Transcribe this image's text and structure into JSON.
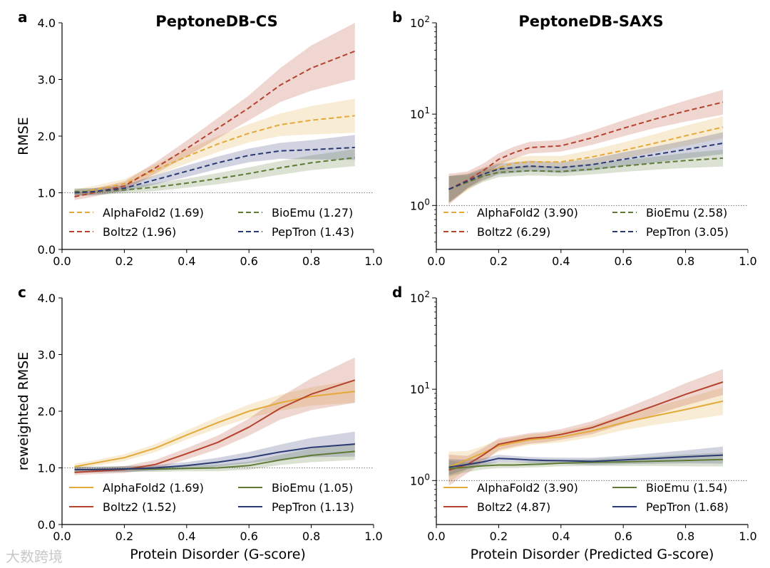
{
  "colors": {
    "AlphaFold2": "#e3aa3a",
    "Boltz2": "#b5442f",
    "BioEmu": "#5e7a35",
    "PepTron": "#2c3a73"
  },
  "watermark": "大数跨境",
  "chart_data": [
    {
      "panel": "a",
      "title": "PeptoneDB-CS",
      "type": "line",
      "line_style": "dashed",
      "xlabel": "",
      "ylabel": "RMSE",
      "xlim": [
        0,
        1
      ],
      "ylim": [
        0,
        4
      ],
      "yscale": "linear",
      "xticks": [
        "0.0",
        "0.2",
        "0.4",
        "0.6",
        "0.8",
        "1.0"
      ],
      "yticks": [
        "0.0",
        "1.0",
        "2.0",
        "3.0",
        "4.0"
      ],
      "reference_line": 1.0,
      "legend_position": "lower center",
      "x": [
        0.04,
        0.1,
        0.2,
        0.3,
        0.4,
        0.5,
        0.6,
        0.7,
        0.8,
        0.94
      ],
      "series": [
        {
          "name": "AlphaFold2",
          "legend": "AlphaFold2 (1.69)",
          "values": [
            1.0,
            1.05,
            1.16,
            1.4,
            1.64,
            1.86,
            2.05,
            2.2,
            2.28,
            2.36
          ],
          "band": [
            0.06,
            0.07,
            0.08,
            0.1,
            0.12,
            0.14,
            0.16,
            0.2,
            0.25,
            0.3
          ]
        },
        {
          "name": "Boltz2",
          "legend": "Boltz2 (1.96)",
          "values": [
            0.93,
            1.0,
            1.12,
            1.44,
            1.78,
            2.14,
            2.5,
            2.9,
            3.2,
            3.5
          ],
          "band": [
            0.06,
            0.07,
            0.08,
            0.1,
            0.14,
            0.18,
            0.22,
            0.3,
            0.4,
            0.5
          ]
        },
        {
          "name": "BioEmu",
          "legend": "BioEmu (1.27)",
          "values": [
            1.02,
            1.02,
            1.05,
            1.1,
            1.17,
            1.25,
            1.34,
            1.44,
            1.53,
            1.62
          ],
          "band": [
            0.06,
            0.06,
            0.06,
            0.07,
            0.08,
            0.1,
            0.11,
            0.12,
            0.13,
            0.15
          ]
        },
        {
          "name": "PepTron",
          "legend": "PepTron (1.43)",
          "values": [
            1.0,
            1.02,
            1.08,
            1.23,
            1.38,
            1.53,
            1.66,
            1.74,
            1.76,
            1.8
          ],
          "band": [
            0.06,
            0.06,
            0.06,
            0.08,
            0.1,
            0.11,
            0.12,
            0.14,
            0.17,
            0.22
          ]
        }
      ]
    },
    {
      "panel": "b",
      "title": "PeptoneDB-SAXS",
      "type": "line",
      "line_style": "dashed",
      "xlabel": "",
      "ylabel": "",
      "xlim": [
        0,
        1
      ],
      "ylim": [
        0.33,
        100
      ],
      "yscale": "log",
      "xticks": [
        "0.0",
        "0.2",
        "0.4",
        "0.6",
        "0.8",
        "1.0"
      ],
      "yticks": [
        "10^0",
        "10^1",
        "10^2"
      ],
      "reference_line": 1.0,
      "legend_position": "lower center",
      "x": [
        0.04,
        0.1,
        0.15,
        0.2,
        0.25,
        0.3,
        0.35,
        0.4,
        0.5,
        0.6,
        0.7,
        0.8,
        0.92
      ],
      "series": [
        {
          "name": "AlphaFold2",
          "legend": "AlphaFold2 (3.90)",
          "values": [
            1.5,
            1.8,
            2.2,
            2.6,
            2.9,
            3.0,
            3.0,
            3.0,
            3.4,
            4.0,
            4.8,
            5.8,
            7.2
          ],
          "band": [
            0.25,
            0.15,
            0.12,
            0.1,
            0.1,
            0.1,
            0.1,
            0.1,
            0.12,
            0.14,
            0.16,
            0.18,
            0.2
          ]
        },
        {
          "name": "Boltz2",
          "legend": "Boltz2 (6.29)",
          "values": [
            1.5,
            1.9,
            2.4,
            3.2,
            3.8,
            4.3,
            4.4,
            4.5,
            5.5,
            7.0,
            8.8,
            10.8,
            13.5
          ],
          "band": [
            0.3,
            0.15,
            0.12,
            0.1,
            0.1,
            0.1,
            0.1,
            0.1,
            0.12,
            0.14,
            0.16,
            0.19,
            0.23
          ]
        },
        {
          "name": "BioEmu",
          "legend": "BioEmu (2.58)",
          "values": [
            1.5,
            1.8,
            2.1,
            2.3,
            2.35,
            2.4,
            2.38,
            2.35,
            2.5,
            2.7,
            2.9,
            3.1,
            3.3
          ],
          "band": [
            0.25,
            0.12,
            0.1,
            0.08,
            0.08,
            0.08,
            0.08,
            0.08,
            0.09,
            0.1,
            0.11,
            0.13,
            0.15
          ]
        },
        {
          "name": "PepTron",
          "legend": "PepTron (3.05)",
          "values": [
            1.5,
            1.85,
            2.2,
            2.5,
            2.6,
            2.7,
            2.65,
            2.6,
            2.8,
            3.2,
            3.6,
            4.1,
            4.8
          ],
          "band": [
            0.25,
            0.12,
            0.1,
            0.09,
            0.09,
            0.09,
            0.09,
            0.09,
            0.1,
            0.12,
            0.14,
            0.16,
            0.2
          ]
        }
      ]
    },
    {
      "panel": "c",
      "title": "",
      "type": "line",
      "line_style": "solid",
      "xlabel": "Protein Disorder (G-score)",
      "ylabel": "reweighted RMSE",
      "xlim": [
        0,
        1
      ],
      "ylim": [
        0,
        4
      ],
      "yscale": "linear",
      "xticks": [
        "0.0",
        "0.2",
        "0.4",
        "0.6",
        "0.8",
        "1.0"
      ],
      "yticks": [
        "0.0",
        "1.0",
        "2.0",
        "3.0",
        "4.0"
      ],
      "reference_line": 1.0,
      "legend_position": "lower center",
      "x": [
        0.04,
        0.1,
        0.2,
        0.3,
        0.4,
        0.5,
        0.6,
        0.7,
        0.8,
        0.94
      ],
      "series": [
        {
          "name": "AlphaFold2",
          "legend": "AlphaFold2 (1.69)",
          "values": [
            1.02,
            1.08,
            1.18,
            1.35,
            1.58,
            1.8,
            2.0,
            2.15,
            2.26,
            2.35
          ],
          "band": [
            0.05,
            0.05,
            0.06,
            0.07,
            0.08,
            0.1,
            0.12,
            0.14,
            0.16,
            0.2
          ]
        },
        {
          "name": "Boltz2",
          "legend": "Boltz2 (1.52)",
          "values": [
            0.92,
            0.94,
            0.97,
            1.06,
            1.25,
            1.45,
            1.72,
            2.05,
            2.3,
            2.55
          ],
          "band": [
            0.05,
            0.05,
            0.06,
            0.08,
            0.1,
            0.12,
            0.15,
            0.2,
            0.28,
            0.4
          ]
        },
        {
          "name": "BioEmu",
          "legend": "BioEmu (1.05)",
          "values": [
            0.97,
            0.97,
            0.98,
            0.98,
            0.99,
            1.0,
            1.04,
            1.14,
            1.22,
            1.29
          ],
          "band": [
            0.05,
            0.05,
            0.05,
            0.05,
            0.05,
            0.06,
            0.07,
            0.09,
            0.12,
            0.15
          ]
        },
        {
          "name": "PepTron",
          "legend": "PepTron (1.13)",
          "values": [
            0.97,
            0.97,
            0.98,
            1.0,
            1.04,
            1.1,
            1.18,
            1.28,
            1.36,
            1.42
          ],
          "band": [
            0.05,
            0.05,
            0.05,
            0.05,
            0.06,
            0.08,
            0.1,
            0.13,
            0.17,
            0.22
          ]
        }
      ]
    },
    {
      "panel": "d",
      "title": "",
      "type": "line",
      "line_style": "solid",
      "xlabel": "Protein Disorder (Predicted G-score)",
      "ylabel": "",
      "xlim": [
        0,
        1
      ],
      "ylim": [
        0.33,
        100
      ],
      "yscale": "log",
      "xticks": [
        "0.0",
        "0.2",
        "0.4",
        "0.6",
        "0.8",
        "1.0"
      ],
      "yticks": [
        "10^0",
        "10^1",
        "10^2"
      ],
      "reference_line": 1.0,
      "legend_position": "lower center",
      "x": [
        0.04,
        0.1,
        0.15,
        0.2,
        0.25,
        0.3,
        0.35,
        0.4,
        0.5,
        0.6,
        0.7,
        0.8,
        0.92
      ],
      "series": [
        {
          "name": "AlphaFold2",
          "legend": "AlphaFold2 (3.90)",
          "values": [
            1.4,
            1.7,
            2.0,
            2.4,
            2.6,
            2.8,
            2.9,
            3.0,
            3.5,
            4.3,
            5.1,
            6.0,
            7.4
          ],
          "band": [
            0.3,
            0.15,
            0.12,
            0.1,
            0.09,
            0.09,
            0.09,
            0.09,
            0.11,
            0.13,
            0.16,
            0.2,
            0.26
          ]
        },
        {
          "name": "Boltz2",
          "legend": "Boltz2 (4.87)",
          "values": [
            1.3,
            1.5,
            1.9,
            2.5,
            2.7,
            2.9,
            3.0,
            3.2,
            3.8,
            5.0,
            6.6,
            8.8,
            12.0
          ],
          "band": [
            0.3,
            0.15,
            0.12,
            0.1,
            0.09,
            0.09,
            0.09,
            0.09,
            0.11,
            0.13,
            0.16,
            0.2,
            0.24
          ]
        },
        {
          "name": "BioEmu",
          "legend": "BioEmu (1.54)",
          "values": [
            1.35,
            1.4,
            1.45,
            1.48,
            1.48,
            1.5,
            1.52,
            1.55,
            1.58,
            1.6,
            1.63,
            1.66,
            1.7
          ],
          "band": [
            0.14,
            0.08,
            0.06,
            0.05,
            0.05,
            0.05,
            0.05,
            0.05,
            0.06,
            0.07,
            0.08,
            0.1,
            0.12
          ]
        },
        {
          "name": "PepTron",
          "legend": "PepTron (1.68)",
          "values": [
            1.4,
            1.5,
            1.6,
            1.75,
            1.72,
            1.68,
            1.66,
            1.65,
            1.62,
            1.68,
            1.75,
            1.82,
            1.9
          ],
          "band": [
            0.14,
            0.08,
            0.06,
            0.06,
            0.05,
            0.05,
            0.05,
            0.05,
            0.06,
            0.07,
            0.09,
            0.11,
            0.15
          ]
        }
      ]
    }
  ]
}
